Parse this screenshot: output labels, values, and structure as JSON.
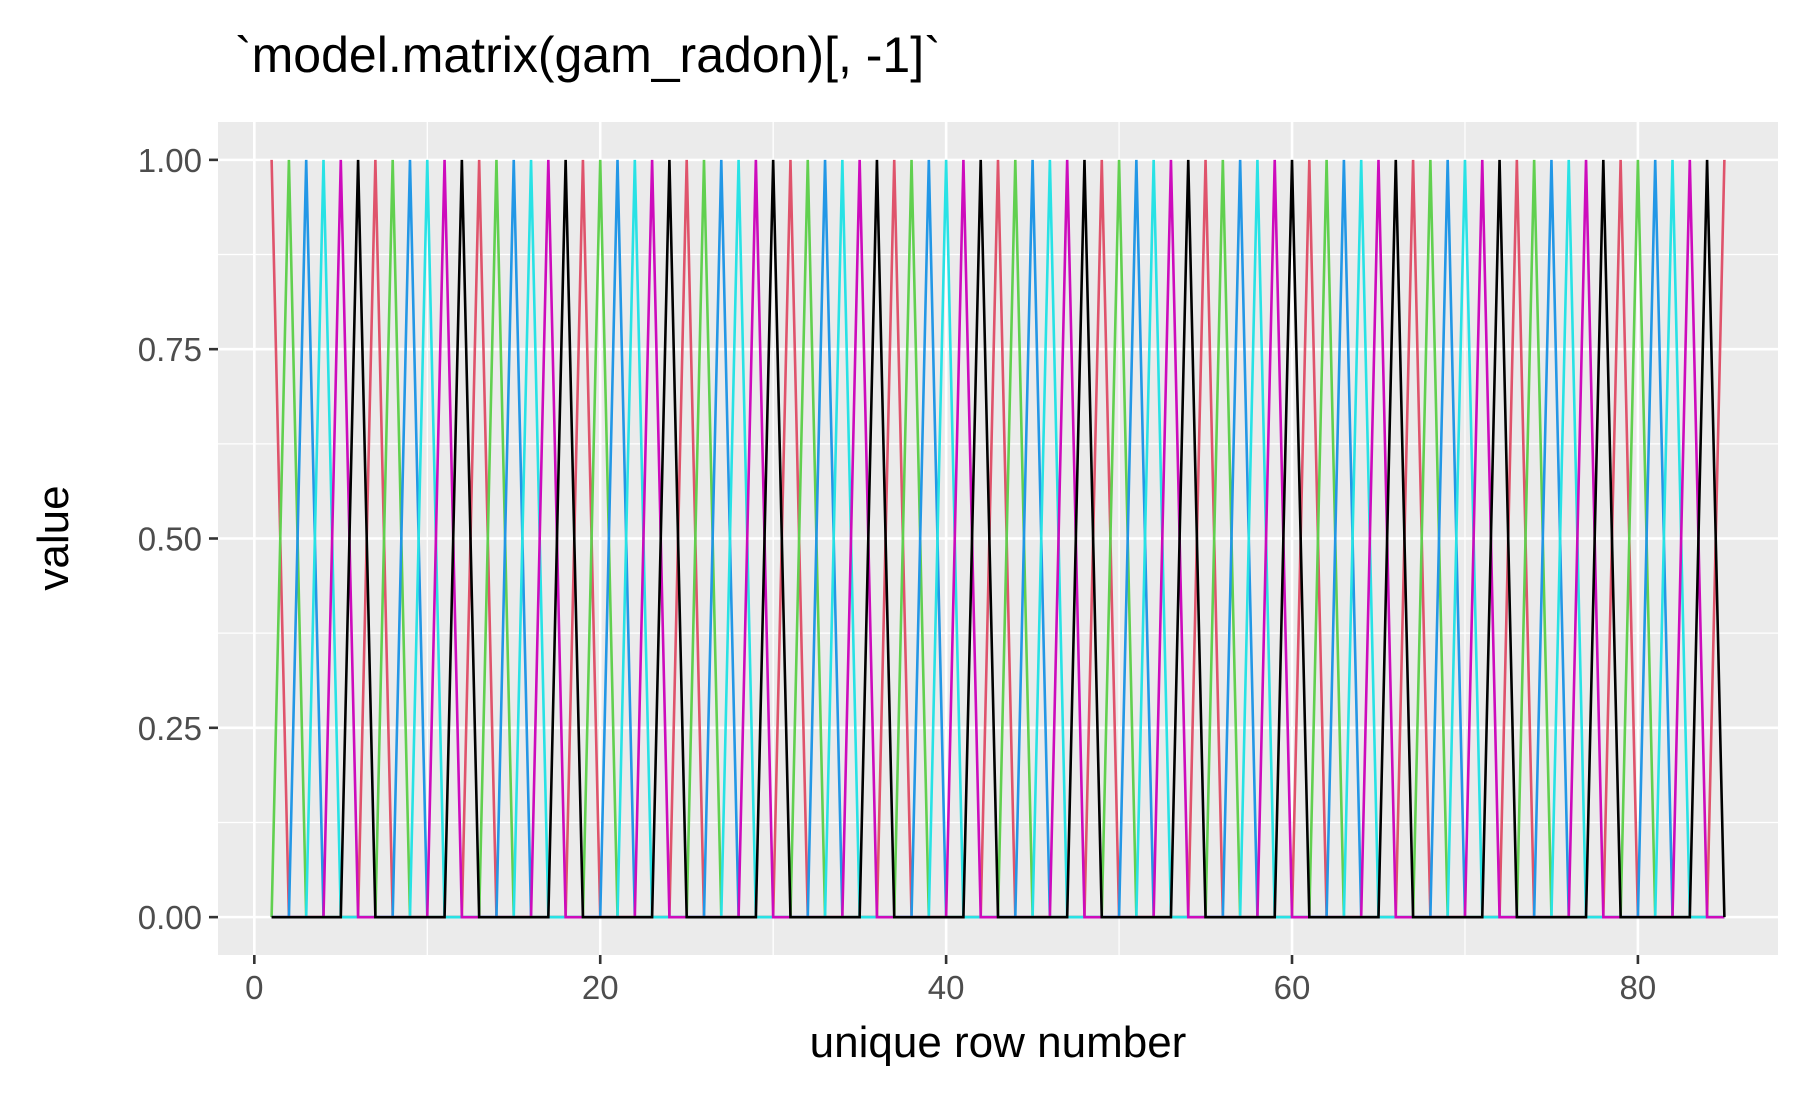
{
  "chart_data": {
    "type": "line",
    "title": "`model.matrix(gam_radon)[, -1]`",
    "xlabel": "unique row number",
    "ylabel": "value",
    "x_range": [
      1,
      85
    ],
    "xlim": [
      -2.1,
      88.1
    ],
    "ylim": [
      -0.05,
      1.05
    ],
    "x_ticks": [
      0,
      20,
      40,
      60,
      80
    ],
    "x_tick_labels": [
      "0",
      "20",
      "40",
      "60",
      "80"
    ],
    "y_ticks": [
      0,
      0.25,
      0.5,
      0.75,
      1
    ],
    "y_tick_labels": [
      "0.00",
      "0.25",
      "0.50",
      "0.75",
      "1.00"
    ],
    "grid": true,
    "legend": "none",
    "background": "#ebebeb",
    "gridline_color": "#ffffff",
    "series_colors": [
      "#df536b",
      "#61d04f",
      "#2297e6",
      "#28e2e5",
      "#cd0bbc",
      "#000000"
    ],
    "series_peaks": [
      [
        1,
        7,
        13,
        19,
        25,
        31,
        37,
        43,
        49,
        55,
        61,
        67,
        73,
        79,
        85
      ],
      [
        2,
        8,
        14,
        20,
        26,
        32,
        38,
        44,
        50,
        56,
        62,
        68,
        74,
        80
      ],
      [
        3,
        9,
        15,
        21,
        27,
        33,
        39,
        45,
        51,
        57,
        63,
        69,
        75,
        81
      ],
      [
        4,
        10,
        16,
        22,
        28,
        34,
        40,
        46,
        52,
        58,
        64,
        70,
        76,
        82
      ],
      [
        5,
        11,
        17,
        23,
        29,
        35,
        41,
        47,
        53,
        59,
        65,
        71,
        77,
        83
      ],
      [
        6,
        12,
        18,
        24,
        30,
        36,
        42,
        48,
        54,
        60,
        66,
        72,
        78,
        84
      ]
    ]
  }
}
